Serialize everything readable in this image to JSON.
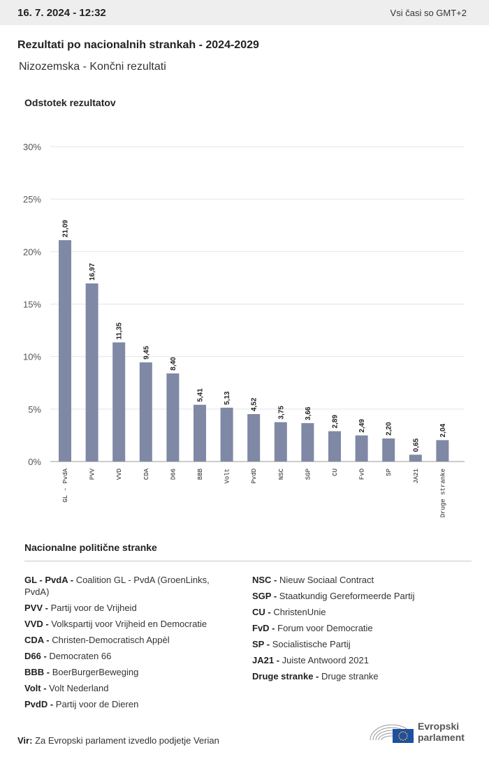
{
  "header": {
    "date": "16. 7. 2024 - 12:32",
    "timezone": "Vsi časi so GMT+2"
  },
  "title": "Rezultati po nacionalnih strankah - 2024-2029",
  "subtitle": "Nizozemska - Končni rezultati",
  "chart_data": {
    "type": "bar",
    "ylabel": "Odstotek rezultatov",
    "ylim": [
      0,
      30
    ],
    "yticks": [
      0,
      5,
      10,
      15,
      20,
      25,
      30
    ],
    "ytick_labels": [
      "0%",
      "5%",
      "10%",
      "15%",
      "20%",
      "25%",
      "30%"
    ],
    "grid": true,
    "categories": [
      "GL - PvdA",
      "PVV",
      "VVD",
      "CDA",
      "D66",
      "BBB",
      "Volt",
      "PvdD",
      "NSC",
      "SGP",
      "CU",
      "FvD",
      "SP",
      "JA21",
      "Druge stranke"
    ],
    "values": [
      21.09,
      16.97,
      11.35,
      9.45,
      8.4,
      5.41,
      5.13,
      4.52,
      3.75,
      3.66,
      2.89,
      2.49,
      2.2,
      0.65,
      2.04
    ],
    "value_labels": [
      "21,09",
      "16,97",
      "11,35",
      "9,45",
      "8,40",
      "5,41",
      "5,13",
      "4,52",
      "3,75",
      "3,66",
      "2,89",
      "2,49",
      "2,20",
      "0,65",
      "2,04"
    ],
    "bar_color": "#7f89a5"
  },
  "legend": {
    "title": "Nacionalne politične stranke",
    "left": [
      {
        "abbr": "GL - PvdA -",
        "name": "Coalition GL - PvdA (GroenLinks, PvdA)"
      },
      {
        "abbr": "PVV -",
        "name": "Partij voor de Vrijheid"
      },
      {
        "abbr": "VVD -",
        "name": "Volkspartij voor Vrijheid en Democratie"
      },
      {
        "abbr": "CDA -",
        "name": "Christen-Democratisch Appèl"
      },
      {
        "abbr": "D66 -",
        "name": "Democraten 66"
      },
      {
        "abbr": "BBB -",
        "name": "BoerBurgerBeweging"
      },
      {
        "abbr": "Volt -",
        "name": "Volt Nederland"
      },
      {
        "abbr": "PvdD -",
        "name": "Partij voor de Dieren"
      }
    ],
    "right": [
      {
        "abbr": "NSC -",
        "name": "Nieuw Sociaal Contract"
      },
      {
        "abbr": "SGP -",
        "name": "Staatkundig Gereformeerde Partij"
      },
      {
        "abbr": "CU -",
        "name": "ChristenUnie"
      },
      {
        "abbr": "FvD -",
        "name": "Forum voor Democratie"
      },
      {
        "abbr": "SP -",
        "name": "Socialistische Partij"
      },
      {
        "abbr": "JA21 -",
        "name": "Juiste Antwoord 2021"
      },
      {
        "abbr": "Druge stranke -",
        "name": "Druge stranke"
      }
    ]
  },
  "source": {
    "label": "Vir:",
    "text": "Za Evropski parlament izvedlo podjetje Verian"
  },
  "logo": {
    "line1": "Evropski",
    "line2": "parlament",
    "flag_color": "#1f4fa3",
    "star_color": "#ffcc00"
  }
}
